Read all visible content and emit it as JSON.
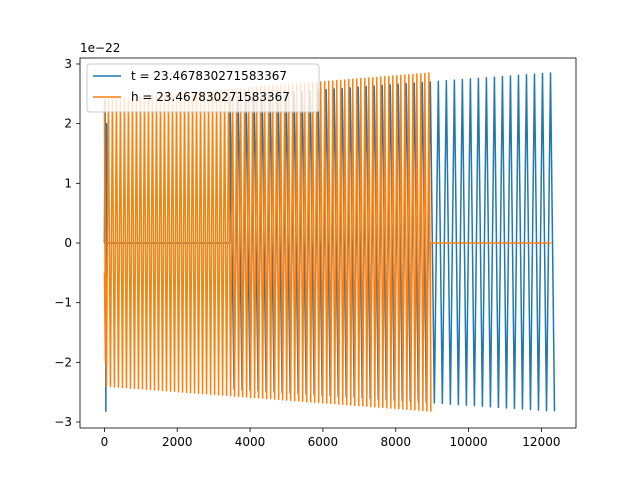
{
  "chart_data": {
    "type": "line",
    "title": "",
    "xlabel": "",
    "ylabel": "",
    "offset_text": "1e−22",
    "xlim": [
      -670,
      12950
    ],
    "ylim": [
      -3.1,
      3.1
    ],
    "xticks": [
      0,
      2000,
      4000,
      6000,
      8000,
      10000,
      12000
    ],
    "xtick_labels": [
      "0",
      "2000",
      "4000",
      "6000",
      "8000",
      "10000",
      "12000"
    ],
    "yticks": [
      -3,
      -2,
      -1,
      0,
      1,
      2,
      3
    ],
    "ytick_labels": [
      "−3",
      "−2",
      "−1",
      "0",
      "1",
      "2",
      "3"
    ],
    "grid": false,
    "legend_placement": "upper-left",
    "series": [
      {
        "name": "t = 23.467830271583367",
        "color": "#1f77b4",
        "segments": [
          {
            "type": "flat",
            "x_start": 0,
            "x_end": 3450,
            "value": 0
          },
          {
            "type": "oscillation",
            "x_start": 3450,
            "x_end": 12270,
            "period": 220,
            "amp_pos_start": 2.45,
            "amp_pos_end": 2.85,
            "amp_neg_start": -2.45,
            "amp_neg_end": -2.82
          }
        ],
        "initial_spike": {
          "x": [
            0,
            20,
            40,
            60,
            80
          ],
          "y": [
            0,
            2.4,
            -2.82,
            2.0,
            0
          ]
        }
      },
      {
        "name": "h = 23.467830271583367",
        "color": "#ff7f0e",
        "segments": [
          {
            "type": "oscillation",
            "x_start": 0,
            "x_end": 8950,
            "period": 110,
            "amp_pos_start": 2.4,
            "amp_pos_end": 2.85,
            "amp_neg_start": -2.4,
            "amp_neg_end": -2.82
          },
          {
            "type": "flat",
            "x_start": 8950,
            "x_end": 12270,
            "value": 0
          }
        ],
        "initial_spike": {
          "x": [
            0,
            30
          ],
          "y": [
            -0.5,
            -2.0
          ]
        }
      }
    ]
  }
}
